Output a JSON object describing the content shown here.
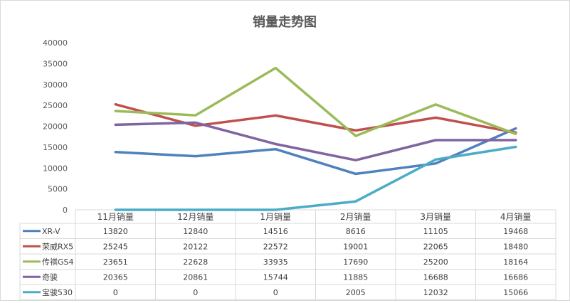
{
  "chart_data": {
    "type": "line",
    "title": "销量走势图",
    "categories": [
      "11月销量",
      "12月销量",
      "1月销量",
      "2月销量",
      "3月销量",
      "4月销量"
    ],
    "ylim": [
      0,
      40000
    ],
    "yticks": [
      "0",
      "5000",
      "10000",
      "15000",
      "20000",
      "25000",
      "30000",
      "35000",
      "40000"
    ],
    "grid": false,
    "legend": "data-table",
    "series": [
      {
        "name": "XR-V",
        "color": "#4f81bd",
        "values": [
          13820,
          12840,
          14516,
          8616,
          11105,
          19468
        ]
      },
      {
        "name": "荣威RX5",
        "color": "#c0504d",
        "values": [
          25245,
          20122,
          22572,
          19001,
          22065,
          18480
        ]
      },
      {
        "name": "传祺GS4",
        "color": "#9bbb59",
        "values": [
          23651,
          22628,
          33935,
          17690,
          25200,
          18164
        ]
      },
      {
        "name": "奇骏",
        "color": "#8064a2",
        "values": [
          20365,
          20861,
          15744,
          11885,
          16688,
          16686
        ]
      },
      {
        "name": "宝骏530",
        "color": "#4bacc6",
        "values": [
          0,
          0,
          0,
          2005,
          12032,
          15066
        ]
      }
    ]
  }
}
